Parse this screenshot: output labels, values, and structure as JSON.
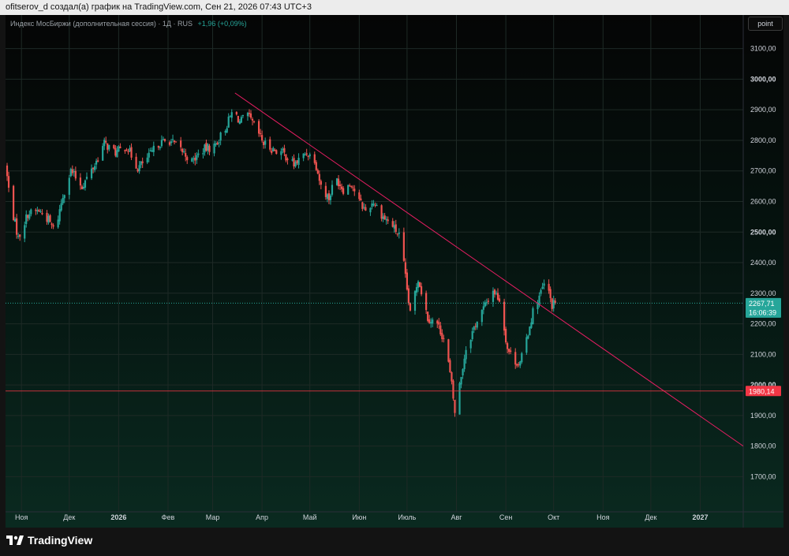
{
  "header": {
    "caption": "ofitserov_d создал(а) график на TradingView.com, Сен 21, 2026 07:43 UTC+3"
  },
  "symbol": {
    "title": "Индекс МосБиржи (дополнительная сессия) · 1Д · RUS",
    "change": "+1,96 (+0,09%)"
  },
  "toolbar": {
    "point_label": "point"
  },
  "footer": {
    "brand": "TradingView"
  },
  "colors": {
    "up": "#26a69a",
    "down": "#ef5350",
    "trendline": "#e91e63",
    "level_line": "#f23645",
    "last_price_badge": "#26a69a",
    "level_badge": "#f23645"
  },
  "chart_data": {
    "type": "candlestick",
    "title": "",
    "xlabel": "",
    "ylabel": "",
    "ylim": [
      1585,
      3210
    ],
    "y_ticks": [
      {
        "value": 1700,
        "label": "1700,00",
        "bold": false
      },
      {
        "value": 1800,
        "label": "1800,00",
        "bold": false
      },
      {
        "value": 1900,
        "label": "1900,00",
        "bold": false
      },
      {
        "value": 2000,
        "label": "2000,00",
        "bold": true
      },
      {
        "value": 2100,
        "label": "2100,00",
        "bold": false
      },
      {
        "value": 2200,
        "label": "2200,00",
        "bold": false
      },
      {
        "value": 2300,
        "label": "2300,00",
        "bold": false
      },
      {
        "value": 2400,
        "label": "2400,00",
        "bold": false
      },
      {
        "value": 2500,
        "label": "2500,00",
        "bold": true
      },
      {
        "value": 2600,
        "label": "2600,00",
        "bold": false
      },
      {
        "value": 2700,
        "label": "2700,00",
        "bold": false
      },
      {
        "value": 2800,
        "label": "2800,00",
        "bold": false
      },
      {
        "value": 2900,
        "label": "2900,00",
        "bold": false
      },
      {
        "value": 3000,
        "label": "3000,00",
        "bold": true
      },
      {
        "value": 3100,
        "label": "3100,00",
        "bold": false
      }
    ],
    "x_ticks": [
      {
        "label": "Ноя",
        "date": "2025-11-01",
        "bold": false
      },
      {
        "label": "Дек",
        "date": "2025-12-01",
        "bold": false
      },
      {
        "label": "2026",
        "date": "2026-01-01",
        "bold": true
      },
      {
        "label": "Фев",
        "date": "2026-02-01",
        "bold": false
      },
      {
        "label": "Мар",
        "date": "2026-03-01",
        "bold": false
      },
      {
        "label": "Апр",
        "date": "2026-04-01",
        "bold": false
      },
      {
        "label": "Май",
        "date": "2026-05-01",
        "bold": false
      },
      {
        "label": "Июн",
        "date": "2026-06-01",
        "bold": false
      },
      {
        "label": "Июль",
        "date": "2026-07-01",
        "bold": false
      },
      {
        "label": "Авг",
        "date": "2026-08-01",
        "bold": false
      },
      {
        "label": "Сен",
        "date": "2026-09-01",
        "bold": false
      },
      {
        "label": "Окт",
        "date": "2026-10-01",
        "bold": false
      },
      {
        "label": "Ноя",
        "date": "2026-11-01",
        "bold": false
      },
      {
        "label": "Дек",
        "date": "2026-12-01",
        "bold": false
      },
      {
        "label": "2027",
        "date": "2027-01-01",
        "bold": true
      }
    ],
    "xlim": [
      "2025-10-22",
      "2027-01-28"
    ],
    "grid": true,
    "series": [
      {
        "type": "close_path",
        "points": [
          [
            "2025-10-22",
            2720
          ],
          [
            "2025-10-25",
            2600
          ],
          [
            "2025-10-30",
            2480
          ],
          [
            "2025-11-05",
            2560
          ],
          [
            "2025-11-12",
            2570
          ],
          [
            "2025-11-18",
            2540
          ],
          [
            "2025-11-22",
            2500
          ],
          [
            "2025-11-27",
            2620
          ],
          [
            "2025-12-02",
            2700
          ],
          [
            "2025-12-09",
            2650
          ],
          [
            "2025-12-17",
            2720
          ],
          [
            "2025-12-23",
            2790
          ],
          [
            "2025-12-30",
            2760
          ],
          [
            "2026-01-06",
            2780
          ],
          [
            "2026-01-13",
            2710
          ],
          [
            "2026-01-19",
            2740
          ],
          [
            "2026-01-26",
            2790
          ],
          [
            "2026-02-02",
            2800
          ],
          [
            "2026-02-09",
            2770
          ],
          [
            "2026-02-16",
            2730
          ],
          [
            "2026-02-23",
            2770
          ],
          [
            "2026-03-02",
            2780
          ],
          [
            "2026-03-09",
            2840
          ],
          [
            "2026-03-14",
            2900
          ],
          [
            "2026-03-18",
            2860
          ],
          [
            "2026-03-23",
            2880
          ],
          [
            "2026-03-28",
            2840
          ],
          [
            "2026-04-02",
            2790
          ],
          [
            "2026-04-08",
            2770
          ],
          [
            "2026-04-14",
            2760
          ],
          [
            "2026-04-21",
            2720
          ],
          [
            "2026-04-29",
            2760
          ],
          [
            "2026-05-04",
            2740
          ],
          [
            "2026-05-08",
            2650
          ],
          [
            "2026-05-13",
            2610
          ],
          [
            "2026-05-17",
            2680
          ],
          [
            "2026-05-22",
            2640
          ],
          [
            "2026-05-27",
            2660
          ],
          [
            "2026-06-01",
            2600
          ],
          [
            "2026-06-05",
            2570
          ],
          [
            "2026-06-10",
            2600
          ],
          [
            "2026-06-16",
            2550
          ],
          [
            "2026-06-22",
            2520
          ],
          [
            "2026-06-27",
            2480
          ],
          [
            "2026-06-30",
            2350
          ],
          [
            "2026-07-03",
            2230
          ],
          [
            "2026-07-08",
            2350
          ],
          [
            "2026-07-14",
            2220
          ],
          [
            "2026-07-20",
            2200
          ],
          [
            "2026-07-25",
            2140
          ],
          [
            "2026-07-29",
            2000
          ],
          [
            "2026-07-31",
            1910
          ],
          [
            "2026-08-03",
            2000
          ],
          [
            "2026-08-07",
            2120
          ],
          [
            "2026-08-13",
            2200
          ],
          [
            "2026-08-19",
            2260
          ],
          [
            "2026-08-24",
            2310
          ],
          [
            "2026-08-28",
            2280
          ],
          [
            "2026-09-02",
            2120
          ],
          [
            "2026-09-06",
            2080
          ],
          [
            "2026-09-10",
            2070
          ],
          [
            "2026-09-14",
            2150
          ],
          [
            "2026-09-18",
            2240
          ],
          [
            "2026-09-22",
            2290
          ],
          [
            "2026-09-26",
            2340
          ],
          [
            "2026-09-30",
            2260
          ],
          [
            "2026-10-02",
            2267.71
          ]
        ]
      },
      {
        "type": "trendline",
        "from": [
          "2026-03-15",
          2955
        ],
        "to": [
          "2027-01-28",
          1800
        ]
      },
      {
        "type": "horizontal_level",
        "value": 1980.14,
        "label": "1980,14"
      }
    ],
    "last_price": {
      "value": 2267.71,
      "label": "2267,71",
      "countdown": "16:06:39"
    }
  }
}
